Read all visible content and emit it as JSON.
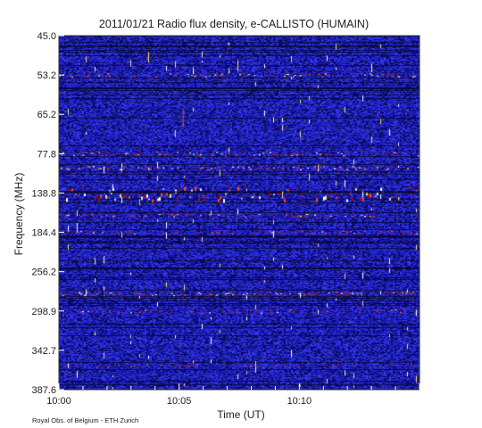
{
  "chart_data": {
    "type": "heatmap",
    "title": "2011/01/21  Radio flux density, e-CALLISTO (HUMAIN)",
    "xlabel": "Time (UT)",
    "ylabel": "Frequency (MHz)",
    "credit": "Royal Obs. of Belgium - ETH Zurich",
    "x_ticks": [
      "10:00",
      "10:05",
      "10:10"
    ],
    "x_tick_minutes": [
      0,
      5,
      10
    ],
    "x_range_minutes": [
      0,
      15
    ],
    "y_ticks": [
      "45.0",
      "53.2",
      "65.2",
      "77.8",
      "138.8",
      "184.4",
      "256.2",
      "298.9",
      "342.7",
      "387.6"
    ],
    "y_range": [
      45.0,
      387.6
    ],
    "y_inverted": true,
    "colormap": [
      "#0a0a60",
      "#1e22c8",
      "#3a3ae8",
      "#a01010",
      "#ff4a10",
      "#ffe060",
      "#ffffff"
    ],
    "intense_bands": [
      {
        "frequency": 53.2,
        "level": 0.75
      },
      {
        "frequency": 77.8,
        "level": 0.85
      },
      {
        "frequency": 100.0,
        "level": 0.9
      },
      {
        "frequency": 138.8,
        "level": 1.0
      },
      {
        "frequency": 165.0,
        "level": 0.8
      },
      {
        "frequency": 184.4,
        "level": 0.6
      },
      {
        "frequency": 280.0,
        "level": 0.85
      },
      {
        "frequency": 298.9,
        "level": 0.6
      },
      {
        "frequency": 360.0,
        "level": 0.5
      }
    ]
  }
}
